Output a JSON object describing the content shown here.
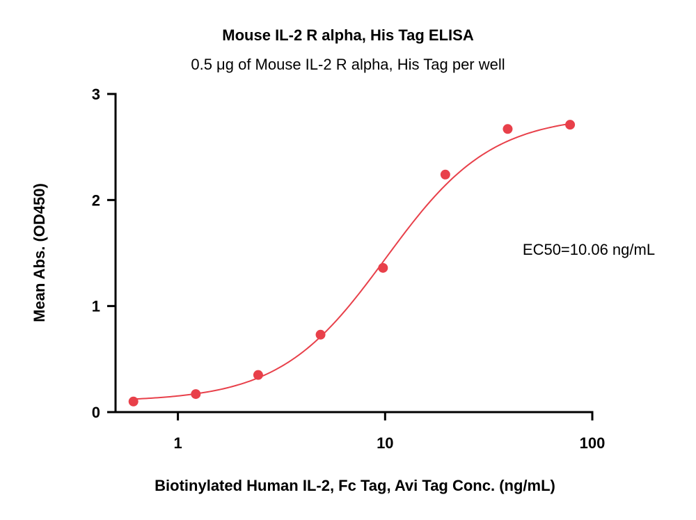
{
  "chart_data": {
    "type": "scatter",
    "title": "Mouse IL-2 R alpha, His Tag ELISA",
    "subtitle": "0.5 μg of Mouse IL-2 R alpha, His Tag per well",
    "xlabel": "Biotinylated Human IL-2, Fc Tag, Avi Tag Conc. (ng/mL)",
    "ylabel": "Mean Abs. (OD450)",
    "xscale": "log",
    "xlim": [
      0.5,
      100
    ],
    "ylim": [
      0,
      3
    ],
    "xticks": [
      1,
      10,
      100
    ],
    "xtick_labels": [
      "1",
      "10",
      "100"
    ],
    "yticks": [
      0,
      1,
      2,
      3
    ],
    "ytick_labels": [
      "0",
      "1",
      "2",
      "3"
    ],
    "grid": false,
    "legend": "none",
    "color": "#e8404a",
    "series": [
      {
        "x": [
          0.61,
          1.22,
          2.44,
          4.88,
          9.77,
          19.53,
          39.06,
          78.13
        ],
        "y": [
          0.1,
          0.17,
          0.35,
          0.73,
          1.36,
          2.24,
          2.67,
          2.71
        ]
      }
    ],
    "fit": {
      "model": "4PL",
      "bottom": 0.1,
      "top": 2.8,
      "ec50": 10.06,
      "hill": 1.7
    },
    "annotations": [
      "EC50=10.06 ng/mL"
    ]
  }
}
